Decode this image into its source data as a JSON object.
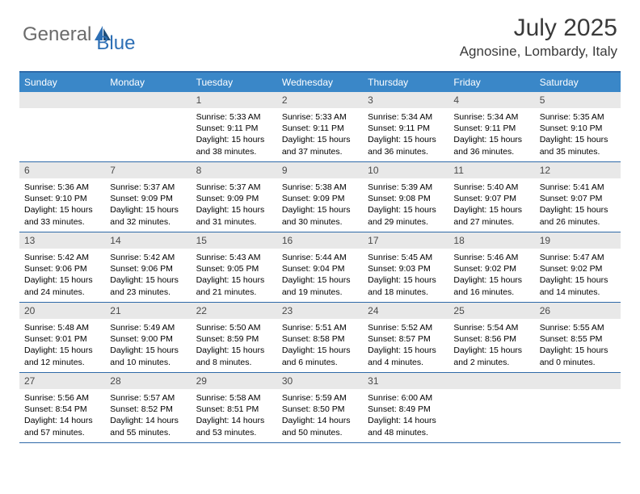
{
  "brand": {
    "part1": "General",
    "part2": "Blue"
  },
  "title": "July 2025",
  "location": "Agnosine, Lombardy, Italy",
  "colors": {
    "header_bg": "#3a87c8",
    "border": "#2f6aa8",
    "daynum_bg": "#e8e8e8",
    "logo_gray": "#6b6b6b",
    "logo_blue": "#2d6fb5"
  },
  "weekdays": [
    "Sunday",
    "Monday",
    "Tuesday",
    "Wednesday",
    "Thursday",
    "Friday",
    "Saturday"
  ],
  "layout": {
    "first_weekday_index": 2,
    "days_in_month": 31
  },
  "days": [
    {
      "n": 1,
      "sunrise": "5:33 AM",
      "sunset": "9:11 PM",
      "daylight": "15 hours and 38 minutes."
    },
    {
      "n": 2,
      "sunrise": "5:33 AM",
      "sunset": "9:11 PM",
      "daylight": "15 hours and 37 minutes."
    },
    {
      "n": 3,
      "sunrise": "5:34 AM",
      "sunset": "9:11 PM",
      "daylight": "15 hours and 36 minutes."
    },
    {
      "n": 4,
      "sunrise": "5:34 AM",
      "sunset": "9:11 PM",
      "daylight": "15 hours and 36 minutes."
    },
    {
      "n": 5,
      "sunrise": "5:35 AM",
      "sunset": "9:10 PM",
      "daylight": "15 hours and 35 minutes."
    },
    {
      "n": 6,
      "sunrise": "5:36 AM",
      "sunset": "9:10 PM",
      "daylight": "15 hours and 33 minutes."
    },
    {
      "n": 7,
      "sunrise": "5:37 AM",
      "sunset": "9:09 PM",
      "daylight": "15 hours and 32 minutes."
    },
    {
      "n": 8,
      "sunrise": "5:37 AM",
      "sunset": "9:09 PM",
      "daylight": "15 hours and 31 minutes."
    },
    {
      "n": 9,
      "sunrise": "5:38 AM",
      "sunset": "9:09 PM",
      "daylight": "15 hours and 30 minutes."
    },
    {
      "n": 10,
      "sunrise": "5:39 AM",
      "sunset": "9:08 PM",
      "daylight": "15 hours and 29 minutes."
    },
    {
      "n": 11,
      "sunrise": "5:40 AM",
      "sunset": "9:07 PM",
      "daylight": "15 hours and 27 minutes."
    },
    {
      "n": 12,
      "sunrise": "5:41 AM",
      "sunset": "9:07 PM",
      "daylight": "15 hours and 26 minutes."
    },
    {
      "n": 13,
      "sunrise": "5:42 AM",
      "sunset": "9:06 PM",
      "daylight": "15 hours and 24 minutes."
    },
    {
      "n": 14,
      "sunrise": "5:42 AM",
      "sunset": "9:06 PM",
      "daylight": "15 hours and 23 minutes."
    },
    {
      "n": 15,
      "sunrise": "5:43 AM",
      "sunset": "9:05 PM",
      "daylight": "15 hours and 21 minutes."
    },
    {
      "n": 16,
      "sunrise": "5:44 AM",
      "sunset": "9:04 PM",
      "daylight": "15 hours and 19 minutes."
    },
    {
      "n": 17,
      "sunrise": "5:45 AM",
      "sunset": "9:03 PM",
      "daylight": "15 hours and 18 minutes."
    },
    {
      "n": 18,
      "sunrise": "5:46 AM",
      "sunset": "9:02 PM",
      "daylight": "15 hours and 16 minutes."
    },
    {
      "n": 19,
      "sunrise": "5:47 AM",
      "sunset": "9:02 PM",
      "daylight": "15 hours and 14 minutes."
    },
    {
      "n": 20,
      "sunrise": "5:48 AM",
      "sunset": "9:01 PM",
      "daylight": "15 hours and 12 minutes."
    },
    {
      "n": 21,
      "sunrise": "5:49 AM",
      "sunset": "9:00 PM",
      "daylight": "15 hours and 10 minutes."
    },
    {
      "n": 22,
      "sunrise": "5:50 AM",
      "sunset": "8:59 PM",
      "daylight": "15 hours and 8 minutes."
    },
    {
      "n": 23,
      "sunrise": "5:51 AM",
      "sunset": "8:58 PM",
      "daylight": "15 hours and 6 minutes."
    },
    {
      "n": 24,
      "sunrise": "5:52 AM",
      "sunset": "8:57 PM",
      "daylight": "15 hours and 4 minutes."
    },
    {
      "n": 25,
      "sunrise": "5:54 AM",
      "sunset": "8:56 PM",
      "daylight": "15 hours and 2 minutes."
    },
    {
      "n": 26,
      "sunrise": "5:55 AM",
      "sunset": "8:55 PM",
      "daylight": "15 hours and 0 minutes."
    },
    {
      "n": 27,
      "sunrise": "5:56 AM",
      "sunset": "8:54 PM",
      "daylight": "14 hours and 57 minutes."
    },
    {
      "n": 28,
      "sunrise": "5:57 AM",
      "sunset": "8:52 PM",
      "daylight": "14 hours and 55 minutes."
    },
    {
      "n": 29,
      "sunrise": "5:58 AM",
      "sunset": "8:51 PM",
      "daylight": "14 hours and 53 minutes."
    },
    {
      "n": 30,
      "sunrise": "5:59 AM",
      "sunset": "8:50 PM",
      "daylight": "14 hours and 50 minutes."
    },
    {
      "n": 31,
      "sunrise": "6:00 AM",
      "sunset": "8:49 PM",
      "daylight": "14 hours and 48 minutes."
    }
  ],
  "labels": {
    "sunrise": "Sunrise:",
    "sunset": "Sunset:",
    "daylight": "Daylight:"
  }
}
